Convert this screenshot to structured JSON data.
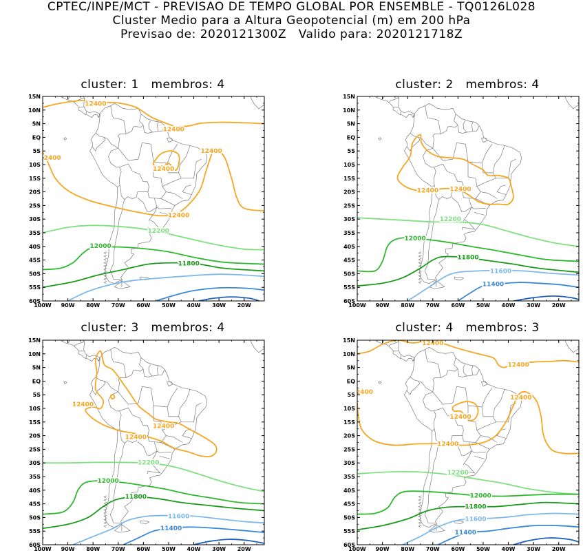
{
  "header": {
    "line1": "CPTEC/INPE/MCT - PREVISAO DE TEMPO GLOBAL POR ENSEMBLE - TQ0126L028",
    "line2": "Cluster Medio para a Altura Geopotencial (m) em 200 hPa",
    "line3": "Previsao de: 2020121300Z   Valido para: 2020121718Z"
  },
  "axes": {
    "lat_labels": [
      "15N",
      "10N",
      "5N",
      "EQ",
      "5S",
      "10S",
      "15S",
      "20S",
      "25S",
      "30S",
      "35S",
      "40S",
      "45S",
      "50S",
      "55S",
      "60S"
    ],
    "lon_labels": [
      "100W",
      "90W",
      "80W",
      "70W",
      "60W",
      "50W",
      "40W",
      "30W",
      "20W"
    ]
  },
  "contour_colors": {
    "12400": "#f5a623",
    "12200": "#7fe07f",
    "12000": "#2eb82e",
    "11800": "#1a9a1a",
    "11600": "#7db8ea",
    "11400": "#3a87d6",
    "11200": "#1f5fbf"
  },
  "panels": [
    {
      "title": "cluster: 1   membros: 4",
      "labels": [
        {
          "text": "12400",
          "lon": -79,
          "lat": 12.3,
          "level": "12400"
        },
        {
          "text": "12400",
          "lon": -48,
          "lat": 3.0,
          "level": "12400"
        },
        {
          "text": "12400",
          "lon": -33,
          "lat": -5.0,
          "level": "12400"
        },
        {
          "text": "12400",
          "lon": -97,
          "lat": -7.5,
          "level": "12400"
        },
        {
          "text": "12400",
          "lon": -52,
          "lat": -11.5,
          "level": "12400"
        },
        {
          "text": "12400",
          "lon": -46,
          "lat": -28.5,
          "level": "12400"
        },
        {
          "text": "12200",
          "lon": -54,
          "lat": -34.2,
          "level": "12200"
        },
        {
          "text": "12000",
          "lon": -77,
          "lat": -39.8,
          "level": "12000"
        },
        {
          "text": "11800",
          "lon": -42,
          "lat": -46.2,
          "level": "11800"
        }
      ]
    },
    {
      "title": "cluster: 2   membros: 4",
      "labels": [
        {
          "text": "12400",
          "lon": -72,
          "lat": -19.5,
          "level": "12400"
        },
        {
          "text": "12400",
          "lon": -59,
          "lat": -19.0,
          "level": "12400"
        },
        {
          "text": "12200",
          "lon": -63,
          "lat": -30.0,
          "level": "12200"
        },
        {
          "text": "12000",
          "lon": -77,
          "lat": -37.0,
          "level": "12000"
        },
        {
          "text": "11800",
          "lon": -56,
          "lat": -44.0,
          "level": "11800"
        },
        {
          "text": "11600",
          "lon": -43,
          "lat": -49.0,
          "level": "11600"
        },
        {
          "text": "11400",
          "lon": -46,
          "lat": -53.8,
          "level": "11400"
        }
      ]
    },
    {
      "title": "cluster: 3   membros: 4",
      "labels": [
        {
          "text": "12400",
          "lon": -84,
          "lat": -8.5,
          "level": "12400"
        },
        {
          "text": "12400",
          "lon": -52,
          "lat": -16.5,
          "level": "12400"
        },
        {
          "text": "12400",
          "lon": -63,
          "lat": -20.5,
          "level": "12400"
        },
        {
          "text": "12200",
          "lon": -58,
          "lat": -29.8,
          "level": "12200"
        },
        {
          "text": "12000",
          "lon": -74,
          "lat": -36.5,
          "level": "12000"
        },
        {
          "text": "11800",
          "lon": -63,
          "lat": -42.3,
          "level": "11800"
        },
        {
          "text": "11600",
          "lon": -46,
          "lat": -49.5,
          "level": "11600"
        },
        {
          "text": "11400",
          "lon": -49,
          "lat": -54.0,
          "level": "11400"
        }
      ]
    },
    {
      "title": "cluster: 4   membros: 3",
      "labels": [
        {
          "text": "12400",
          "lon": -70,
          "lat": 14.0,
          "level": "12400"
        },
        {
          "text": "12400",
          "lon": -36,
          "lat": 6.0,
          "level": "12400"
        },
        {
          "text": "12400",
          "lon": -98,
          "lat": -4.0,
          "level": "12400"
        },
        {
          "text": "12400",
          "lon": -35,
          "lat": -6.0,
          "level": "12400"
        },
        {
          "text": "12400",
          "lon": -59,
          "lat": -13.0,
          "level": "12400"
        },
        {
          "text": "12400",
          "lon": -64,
          "lat": -23.0,
          "level": "12400"
        },
        {
          "text": "12200",
          "lon": -60,
          "lat": -33.5,
          "level": "12200"
        },
        {
          "text": "12000",
          "lon": -51,
          "lat": -42.0,
          "level": "12000"
        },
        {
          "text": "11800",
          "lon": -53,
          "lat": -46.0,
          "level": "11800"
        },
        {
          "text": "11600",
          "lon": -53,
          "lat": -50.5,
          "level": "11600"
        },
        {
          "text": "11400",
          "lon": -57,
          "lat": -55.5,
          "level": "11400"
        }
      ]
    }
  ]
}
